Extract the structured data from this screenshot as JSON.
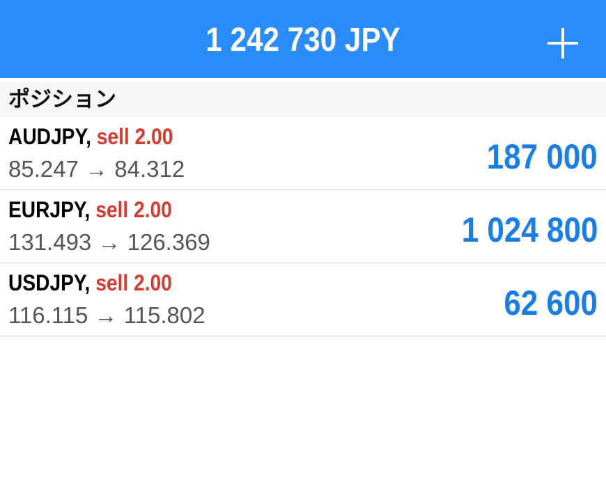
{
  "header": {
    "title": "1 242 730 JPY",
    "add_icon": "plus-icon"
  },
  "section": {
    "title": "ポジション"
  },
  "positions": [
    {
      "symbol": "AUDJPY,",
      "side": "sell 2.00",
      "prices": "85.247 → 84.312",
      "profit": "187 000"
    },
    {
      "symbol": "EURJPY,",
      "side": "sell 2.00",
      "prices": "131.493 → 126.369",
      "profit": "1 024 800"
    },
    {
      "symbol": "USDJPY,",
      "side": "sell 2.00",
      "prices": "116.115 → 115.802",
      "profit": "62 600"
    }
  ],
  "colors": {
    "header": "#2a8cf9",
    "sell": "#d63b2f",
    "profit": "#1a7ee8"
  }
}
